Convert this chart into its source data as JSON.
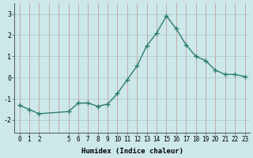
{
  "x": [
    0,
    1,
    2,
    5,
    6,
    7,
    8,
    9,
    10,
    11,
    12,
    13,
    14,
    15,
    16,
    17,
    18,
    19,
    20,
    21,
    22,
    23
  ],
  "y": [
    -1.3,
    -1.5,
    -1.7,
    -1.6,
    -1.2,
    -1.2,
    -1.35,
    -1.25,
    -0.75,
    -0.1,
    0.55,
    1.5,
    2.1,
    2.9,
    2.3,
    1.55,
    1.0,
    0.8,
    0.35,
    0.15,
    0.15,
    0.05
  ],
  "x_ticks": [
    0,
    1,
    2,
    5,
    6,
    7,
    8,
    9,
    10,
    11,
    12,
    13,
    14,
    15,
    16,
    17,
    18,
    19,
    20,
    21,
    22,
    23
  ],
  "y_ticks": [
    -2,
    -1,
    0,
    1,
    2,
    3
  ],
  "xlim": [
    -0.5,
    23.5
  ],
  "ylim": [
    -2.6,
    3.5
  ],
  "xlabel": "Humidex (Indice chaleur)",
  "line_color": "#2e7d6e",
  "marker": "+",
  "marker_size": 4.0,
  "bg_color": "#cce8e8",
  "grid_color_h": "#b0cccc",
  "grid_color_v": "#c4a0a0",
  "linewidth": 1.0,
  "tick_fontsize": 5.5,
  "xlabel_fontsize": 6.5
}
